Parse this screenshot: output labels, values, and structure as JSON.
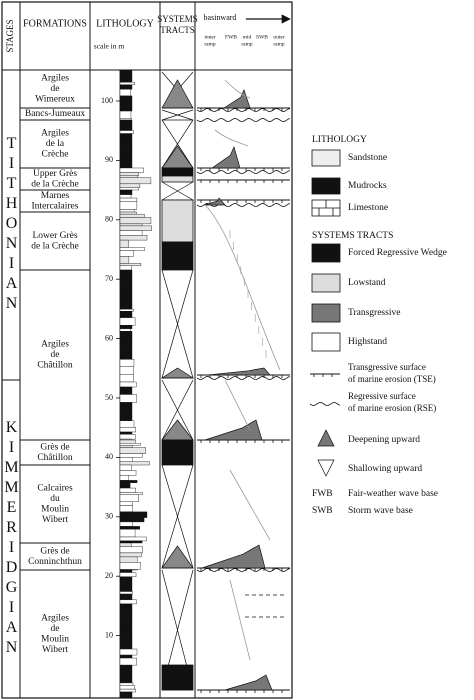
{
  "header": {
    "stages": "STAGES",
    "formations": "FORMATIONS",
    "lithology": "LITHOLOGY",
    "scale": "scale in m",
    "systems_tracts": [
      "SYSTEMS",
      "TRACTS"
    ],
    "basinward": "basinward",
    "ramp_labels": [
      [
        "inner",
        "ramp"
      ],
      [
        "FWB"
      ],
      [
        "mid",
        "ramp"
      ],
      [
        "SWB"
      ],
      [
        "outer",
        "ramp"
      ]
    ]
  },
  "stages": [
    "TITHONIAN",
    "KIMMERIDGIAN"
  ],
  "scale_ticks": [
    10,
    20,
    30,
    40,
    50,
    60,
    70,
    80,
    90,
    100
  ],
  "formations": [
    [
      "Argiles",
      "de",
      "Wimereux"
    ],
    [
      "Bancs-Jumeaux"
    ],
    [
      "Argiles",
      "de la",
      "Crèche"
    ],
    [
      "Upper Grès",
      "de la Crèche"
    ],
    [
      "Marnes",
      "Intercalaires"
    ],
    [
      "Lower Grès",
      "de la Crèche"
    ],
    [
      "Argiles",
      "de",
      "Châtillon"
    ],
    [
      "Grès de",
      "Châtillon"
    ],
    [
      "Calcaires",
      "du",
      "Moulin",
      "Wibert"
    ],
    [
      "Grès de",
      "Conninchthun"
    ],
    [
      "Argiles",
      "de",
      "Moulin",
      "Wibert"
    ]
  ],
  "legend": {
    "lithology_title": "LITHOLOGY",
    "lithology": [
      "Sandstone",
      "Mudrocks",
      "Limestone"
    ],
    "systems_title": "SYSTEMS TRACTS",
    "systems": [
      "Forced Regressive Wedge",
      "Lowstand",
      "Transgressive",
      "Highstand"
    ],
    "surfaces": [
      [
        "Transgressive surface",
        "of marine erosion (TSE)"
      ],
      [
        "Regressive surface",
        "of marine erosion (RSE)"
      ]
    ],
    "trends": [
      "Deepening upward",
      "Shallowing upward"
    ],
    "abbreviations": [
      {
        "abbr": "FWB",
        "text": "Fair-weather wave base"
      },
      {
        "abbr": "SWB",
        "text": "Storm wave base"
      }
    ]
  }
}
